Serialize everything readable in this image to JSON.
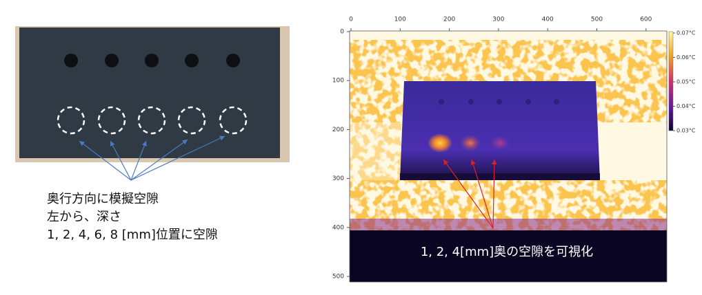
{
  "left_panel": {
    "caption_lines": [
      "奥行方向に模擬空隙",
      "左から、深さ",
      "1, 2, 4, 6, 8 [mm]位置に空隙"
    ]
  },
  "right_panel": {
    "x_ticks": [
      0,
      100,
      200,
      300,
      400,
      500,
      600
    ],
    "y_ticks": [
      0,
      100,
      200,
      300,
      400,
      500
    ],
    "colorbar_labels": [
      "0.07°C",
      "0.06°C",
      "0.05°C",
      "0.04°C",
      "0.03°C"
    ],
    "annotation": "1, 2, 4[mm]奥の空隙を可視化"
  }
}
